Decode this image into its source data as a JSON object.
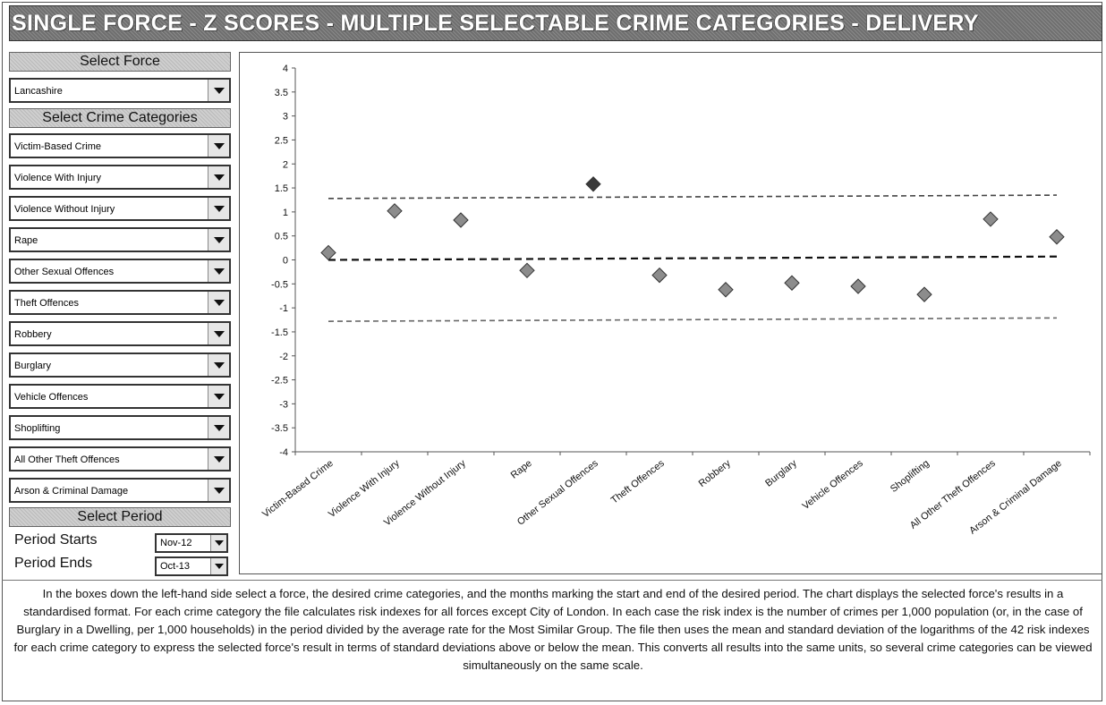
{
  "title": "SINGLE FORCE - Z SCORES - MULTIPLE SELECTABLE CRIME CATEGORIES - DELIVERY",
  "force": {
    "header": "Select Force",
    "selected": "Lancashire"
  },
  "categories": {
    "header": "Select Crime Categories",
    "items": [
      "Victim-Based Crime",
      "Violence With Injury",
      "Violence Without Injury",
      "Rape",
      "Other Sexual Offences",
      "Theft Offences",
      "Robbery",
      "Burglary",
      "Vehicle Offences",
      "Shoplifting",
      "All Other Theft Offences",
      "Arson & Criminal Damage"
    ]
  },
  "period": {
    "header": "Select Period",
    "start_label": "Period Starts",
    "start_value": "Nov-12",
    "end_label": "Period Ends",
    "end_value": "Oct-13"
  },
  "chart_data": {
    "type": "scatter",
    "categories": [
      "Victim-Based Crime",
      "Violence With Injury",
      "Violence Without Injury",
      "Rape",
      "Other Sexual Offences",
      "Theft Offences",
      "Robbery",
      "Burglary",
      "Vehicle Offences",
      "Shoplifting",
      "All Other Theft Offences",
      "Arson & Criminal Damage"
    ],
    "values": [
      0.15,
      1.02,
      0.83,
      -0.22,
      1.58,
      -0.32,
      -0.62,
      -0.48,
      -0.55,
      -0.72,
      0.85,
      0.48
    ],
    "highlight_index": 4,
    "ylim": [
      -4,
      4
    ],
    "yticks": [
      "4",
      "3.5",
      "3",
      "2.5",
      "2",
      "1.5",
      "1",
      "0.5",
      "0",
      "-0.5",
      "-1",
      "-1.5",
      "-2",
      "-2.5",
      "-3",
      "-3.5",
      "-4"
    ],
    "reference_lines": [
      {
        "name": "upper",
        "start": 1.28,
        "end": 1.35
      },
      {
        "name": "mean",
        "start": 0.0,
        "end": 0.07
      },
      {
        "name": "lower",
        "start": -1.28,
        "end": -1.21
      }
    ],
    "colors": {
      "marker": "#8c8c8c",
      "highlight": "#3a3a3a",
      "upper_line": "#444444",
      "mean_line": "#111111",
      "lower_line": "#666666"
    }
  },
  "description": "In the boxes down the left-hand side select a force, the desired crime categories, and the months marking the start and end of the desired period.  The chart displays the selected force's results in a standardised format.  For each crime category the file calculates risk indexes for all forces except City of London.  In each case the risk index is the number of crimes per 1,000 population (or, in the case of Burglary in a Dwelling, per 1,000 households) in the period divided by the average rate for the Most Similar Group.  The file then uses the mean and standard deviation of the logarithms of the 42 risk indexes for each crime category to express the selected force's result in terms of standard deviations above or below the mean.  This converts all results into the same units, so several crime categories can be viewed simultaneously on the same scale."
}
